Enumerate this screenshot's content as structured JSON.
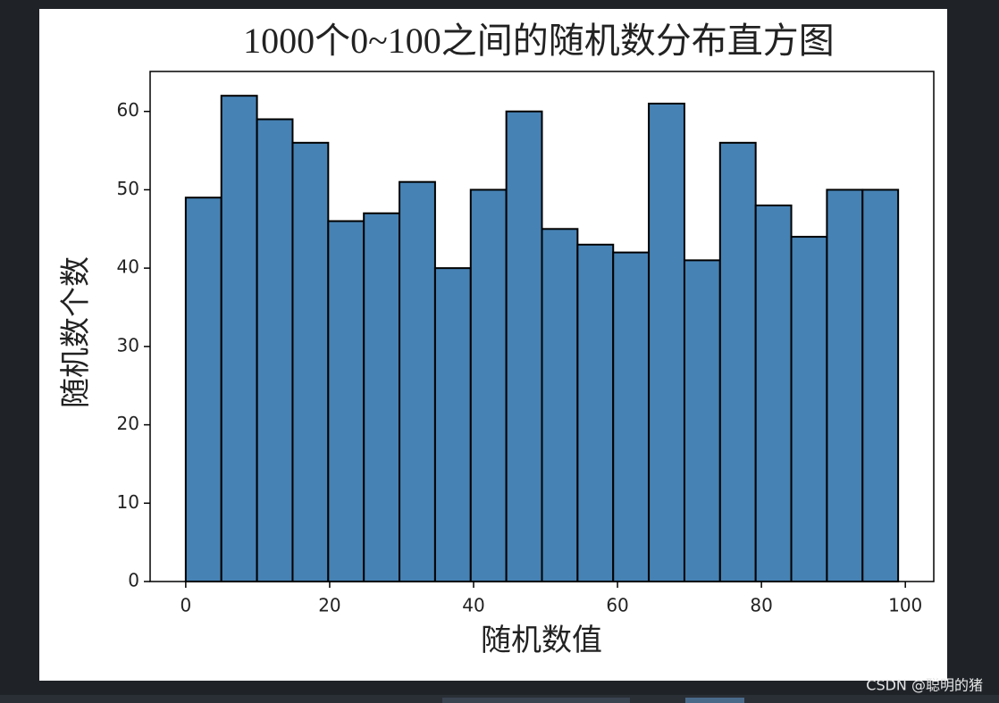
{
  "chart_data": {
    "type": "histogram",
    "title": "1000个0~100之间的随机数分布直方图",
    "xlabel": "随机数值",
    "ylabel": "随机数个数",
    "bins": [
      0,
      4.95,
      9.9,
      14.85,
      19.8,
      24.75,
      29.7,
      34.65,
      39.6,
      44.55,
      49.5,
      54.45,
      59.4,
      64.35,
      69.3,
      74.25,
      79.2,
      84.15,
      89.1,
      94.05,
      99
    ],
    "values": [
      49,
      62,
      59,
      56,
      46,
      47,
      51,
      40,
      50,
      60,
      45,
      43,
      42,
      61,
      41,
      56,
      48,
      44,
      50,
      50
    ],
    "color": "#4682b4",
    "edgecolor": "#000000",
    "xlim": [
      -4.95,
      103.95
    ],
    "xticks": [
      0,
      20,
      40,
      60,
      80,
      100
    ],
    "ylim": [
      0,
      65.1
    ],
    "yticks": [
      0,
      10,
      20,
      30,
      40,
      50,
      60
    ]
  },
  "watermark": "CSDN @聪明的猪 "
}
